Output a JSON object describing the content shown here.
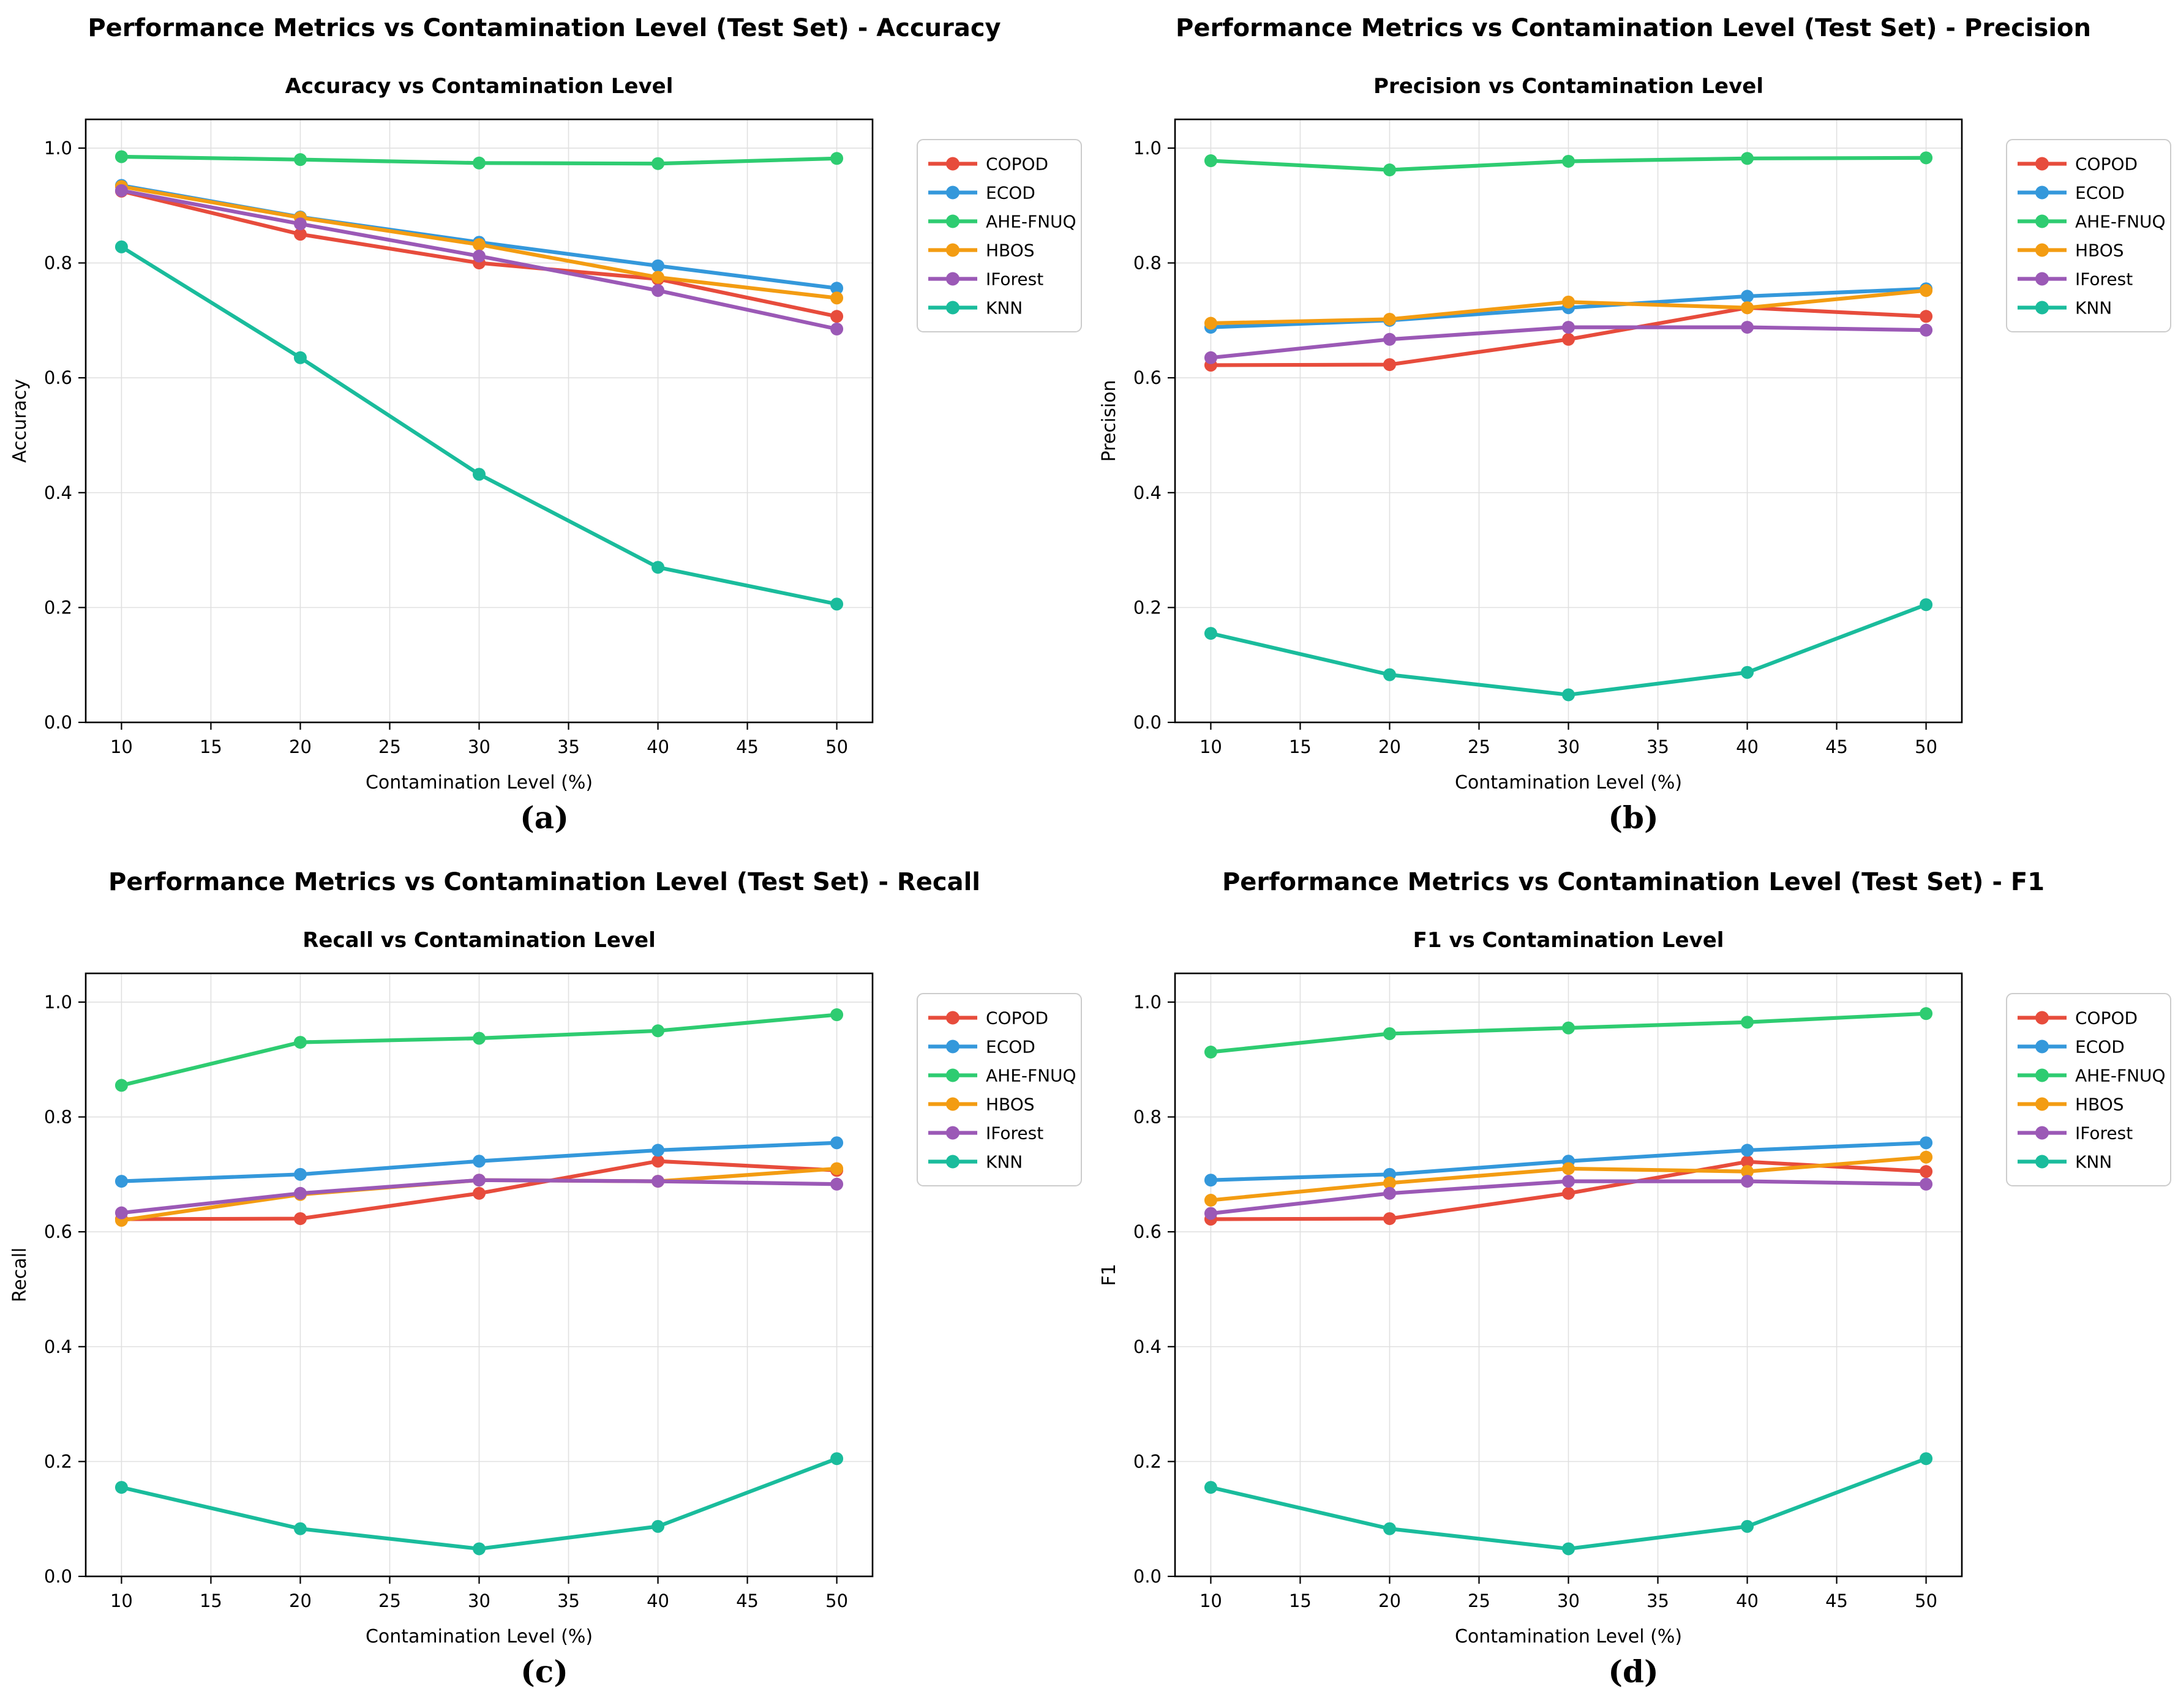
{
  "figure": {
    "background": "#ffffff"
  },
  "panels": [
    {
      "label": "a",
      "suptitle": "Performance Metrics vs Contamination Level (Test Set) - Accuracy",
      "caption": "(a)",
      "chart_index": 0
    },
    {
      "label": "b",
      "suptitle": "Performance Metrics vs Contamination Level (Test Set) - Precision",
      "caption": "(b)",
      "chart_index": 1
    },
    {
      "label": "c",
      "suptitle": "Performance Metrics vs Contamination Level (Test Set) - Recall",
      "caption": "(c)",
      "chart_index": 2
    },
    {
      "label": "d",
      "suptitle": "Performance Metrics vs Contamination Level (Test Set) - F1",
      "caption": "(d)",
      "chart_index": 3
    }
  ],
  "chart_data": [
    {
      "type": "line",
      "title": "Accuracy vs Contamination Level",
      "xlabel": "Contamination Level (%)",
      "ylabel": "Accuracy",
      "x": [
        10,
        20,
        30,
        40,
        50
      ],
      "xlim": [
        8,
        52
      ],
      "ylim": [
        0,
        1.05
      ],
      "xticks": [
        10,
        15,
        20,
        25,
        30,
        35,
        40,
        45,
        50
      ],
      "yticks": [
        0.0,
        0.2,
        0.4,
        0.6,
        0.8,
        1.0
      ],
      "grid": true,
      "legend_position": "right",
      "series": [
        {
          "name": "COPOD",
          "color": "#e74c3c",
          "values": [
            0.925,
            0.85,
            0.8,
            0.772,
            0.707
          ]
        },
        {
          "name": "ECOD",
          "color": "#3498db",
          "values": [
            0.935,
            0.88,
            0.836,
            0.795,
            0.756
          ]
        },
        {
          "name": "AHE-FNUQ",
          "color": "#2ecc71",
          "values": [
            0.985,
            0.98,
            0.974,
            0.973,
            0.982
          ]
        },
        {
          "name": "HBOS",
          "color": "#f39c12",
          "values": [
            0.933,
            0.879,
            0.832,
            0.775,
            0.739
          ]
        },
        {
          "name": "IForest",
          "color": "#9b59b6",
          "values": [
            0.926,
            0.868,
            0.812,
            0.752,
            0.685
          ]
        },
        {
          "name": "KNN",
          "color": "#1abc9c",
          "values": [
            0.828,
            0.635,
            0.432,
            0.27,
            0.206
          ]
        }
      ]
    },
    {
      "type": "line",
      "title": "Precision vs Contamination Level",
      "xlabel": "Contamination Level (%)",
      "ylabel": "Precision",
      "x": [
        10,
        20,
        30,
        40,
        50
      ],
      "xlim": [
        8,
        52
      ],
      "ylim": [
        0,
        1.05
      ],
      "xticks": [
        10,
        15,
        20,
        25,
        30,
        35,
        40,
        45,
        50
      ],
      "yticks": [
        0.0,
        0.2,
        0.4,
        0.6,
        0.8,
        1.0
      ],
      "grid": true,
      "legend_position": "right",
      "series": [
        {
          "name": "COPOD",
          "color": "#e74c3c",
          "values": [
            0.622,
            0.623,
            0.667,
            0.722,
            0.707
          ]
        },
        {
          "name": "ECOD",
          "color": "#3498db",
          "values": [
            0.688,
            0.7,
            0.722,
            0.742,
            0.755
          ]
        },
        {
          "name": "AHE-FNUQ",
          "color": "#2ecc71",
          "values": [
            0.978,
            0.962,
            0.977,
            0.982,
            0.983
          ]
        },
        {
          "name": "HBOS",
          "color": "#f39c12",
          "values": [
            0.695,
            0.702,
            0.732,
            0.722,
            0.752
          ]
        },
        {
          "name": "IForest",
          "color": "#9b59b6",
          "values": [
            0.635,
            0.667,
            0.688,
            0.688,
            0.683
          ]
        },
        {
          "name": "KNN",
          "color": "#1abc9c",
          "values": [
            0.155,
            0.083,
            0.048,
            0.087,
            0.205
          ]
        }
      ]
    },
    {
      "type": "line",
      "title": "Recall vs Contamination Level",
      "xlabel": "Contamination Level (%)",
      "ylabel": "Recall",
      "x": [
        10,
        20,
        30,
        40,
        50
      ],
      "xlim": [
        8,
        52
      ],
      "ylim": [
        0,
        1.05
      ],
      "xticks": [
        10,
        15,
        20,
        25,
        30,
        35,
        40,
        45,
        50
      ],
      "yticks": [
        0.0,
        0.2,
        0.4,
        0.6,
        0.8,
        1.0
      ],
      "grid": true,
      "legend_position": "right",
      "series": [
        {
          "name": "COPOD",
          "color": "#e74c3c",
          "values": [
            0.622,
            0.623,
            0.667,
            0.723,
            0.707
          ]
        },
        {
          "name": "ECOD",
          "color": "#3498db",
          "values": [
            0.688,
            0.7,
            0.723,
            0.742,
            0.755
          ]
        },
        {
          "name": "AHE-FNUQ",
          "color": "#2ecc71",
          "values": [
            0.855,
            0.93,
            0.937,
            0.95,
            0.978
          ]
        },
        {
          "name": "HBOS",
          "color": "#f39c12",
          "values": [
            0.62,
            0.665,
            0.69,
            0.688,
            0.71
          ]
        },
        {
          "name": "IForest",
          "color": "#9b59b6",
          "values": [
            0.633,
            0.667,
            0.69,
            0.688,
            0.683
          ]
        },
        {
          "name": "KNN",
          "color": "#1abc9c",
          "values": [
            0.155,
            0.083,
            0.048,
            0.087,
            0.205
          ]
        }
      ]
    },
    {
      "type": "line",
      "title": "F1 vs Contamination Level",
      "xlabel": "Contamination Level (%)",
      "ylabel": "F1",
      "x": [
        10,
        20,
        30,
        40,
        50
      ],
      "xlim": [
        8,
        52
      ],
      "ylim": [
        0,
        1.05
      ],
      "xticks": [
        10,
        15,
        20,
        25,
        30,
        35,
        40,
        45,
        50
      ],
      "yticks": [
        0.0,
        0.2,
        0.4,
        0.6,
        0.8,
        1.0
      ],
      "grid": true,
      "legend_position": "right",
      "series": [
        {
          "name": "COPOD",
          "color": "#e74c3c",
          "values": [
            0.622,
            0.623,
            0.667,
            0.722,
            0.705
          ]
        },
        {
          "name": "ECOD",
          "color": "#3498db",
          "values": [
            0.69,
            0.7,
            0.723,
            0.742,
            0.755
          ]
        },
        {
          "name": "AHE-FNUQ",
          "color": "#2ecc71",
          "values": [
            0.913,
            0.945,
            0.955,
            0.965,
            0.98
          ]
        },
        {
          "name": "HBOS",
          "color": "#f39c12",
          "values": [
            0.655,
            0.685,
            0.71,
            0.705,
            0.73
          ]
        },
        {
          "name": "IForest",
          "color": "#9b59b6",
          "values": [
            0.632,
            0.667,
            0.688,
            0.688,
            0.683
          ]
        },
        {
          "name": "KNN",
          "color": "#1abc9c",
          "values": [
            0.155,
            0.083,
            0.048,
            0.087,
            0.205
          ]
        }
      ]
    }
  ],
  "style": {
    "grid_color": "#e0e0e0",
    "spine_color": "#000000",
    "legend_border_color": "#cccccc"
  }
}
